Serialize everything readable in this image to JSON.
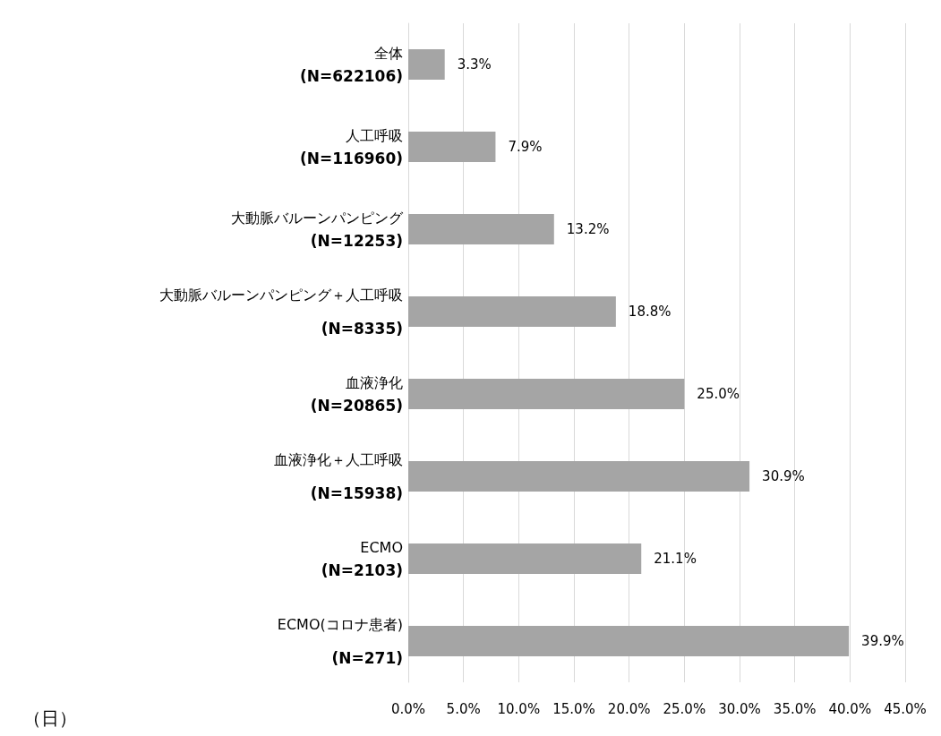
{
  "chart_data": {
    "type": "bar",
    "orientation": "horizontal",
    "categories": [
      "全体\n(N=622106)",
      "人工呼吸\n(N=116960)",
      "大動脈バルーンパンピング\n(N=12253)",
      "大動脈バルーンパンピング＋人工呼吸\n\n(N=8335)",
      "血液浄化\n(N=20865)",
      "血液浄化＋人工呼吸\n\n(N=15938)",
      "ECMO\n(N=2103)",
      "ECMO(コロナ患者)\n\n(N=271)"
    ],
    "values": [
      3.3,
      7.9,
      13.2,
      18.8,
      25.0,
      30.9,
      21.1,
      39.9
    ],
    "value_labels": [
      "3.3%",
      "7.9%",
      "13.2%",
      "18.8%",
      "25.0%",
      "30.9%",
      "21.1%",
      "39.9%"
    ],
    "color": "#a5a5a5",
    "xlim": [
      0,
      45
    ],
    "xticks": [
      {
        "value": 0,
        "label": "0.0%"
      },
      {
        "value": 5,
        "label": "5.0%"
      },
      {
        "value": 10,
        "label": "10.0%"
      },
      {
        "value": 15,
        "label": "15.0%"
      },
      {
        "value": 20,
        "label": "20.0%"
      },
      {
        "value": 25,
        "label": "25.0%"
      },
      {
        "value": 30,
        "label": "30.0%"
      },
      {
        "value": 35,
        "label": "35.0%"
      },
      {
        "value": 40,
        "label": "40.0%"
      },
      {
        "value": 45,
        "label": "45.0%"
      }
    ],
    "grid": "x",
    "annotations": [
      "（日）"
    ]
  }
}
